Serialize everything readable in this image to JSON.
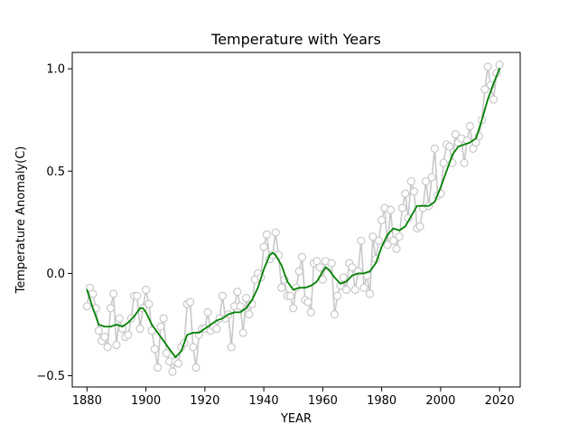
{
  "chart_data": {
    "type": "line",
    "title": "Temperature with Years",
    "xlabel": "YEAR",
    "ylabel": "Temperature Anomaly(C)",
    "xlim": [
      1875,
      2027
    ],
    "ylim": [
      -0.555,
      1.08
    ],
    "x_ticks": [
      1880,
      1900,
      1920,
      1940,
      1960,
      1980,
      2000,
      2020
    ],
    "y_ticks": [
      -0.5,
      0.0,
      0.5,
      1.0
    ],
    "y_tick_labels": [
      "−0.5",
      "0.0",
      "0.5",
      "1.0"
    ],
    "grid": false,
    "legend": "none",
    "series": [
      {
        "style": "line-with-hollow-markers",
        "color": "#c8c8c8",
        "x": [
          1880,
          1881,
          1882,
          1883,
          1884,
          1885,
          1886,
          1887,
          1888,
          1889,
          1890,
          1891,
          1892,
          1893,
          1894,
          1895,
          1896,
          1897,
          1898,
          1899,
          1900,
          1901,
          1902,
          1903,
          1904,
          1905,
          1906,
          1907,
          1908,
          1909,
          1910,
          1911,
          1912,
          1913,
          1914,
          1915,
          1916,
          1917,
          1918,
          1919,
          1920,
          1921,
          1922,
          1923,
          1924,
          1925,
          1926,
          1927,
          1928,
          1929,
          1930,
          1931,
          1932,
          1933,
          1934,
          1935,
          1936,
          1937,
          1938,
          1939,
          1940,
          1941,
          1942,
          1943,
          1944,
          1945,
          1946,
          1947,
          1948,
          1949,
          1950,
          1951,
          1952,
          1953,
          1954,
          1955,
          1956,
          1957,
          1958,
          1959,
          1960,
          1961,
          1962,
          1963,
          1964,
          1965,
          1966,
          1967,
          1968,
          1969,
          1970,
          1971,
          1972,
          1973,
          1974,
          1975,
          1976,
          1977,
          1978,
          1979,
          1980,
          1981,
          1982,
          1983,
          1984,
          1985,
          1986,
          1987,
          1988,
          1989,
          1990,
          1991,
          1992,
          1993,
          1994,
          1995,
          1996,
          1997,
          1998,
          1999,
          2000,
          2001,
          2002,
          2003,
          2004,
          2005,
          2006,
          2007,
          2008,
          2009,
          2010,
          2011,
          2012,
          2013,
          2014,
          2015,
          2016,
          2017,
          2018,
          2019,
          2020
        ],
        "values": [
          -0.16,
          -0.07,
          -0.1,
          -0.17,
          -0.28,
          -0.33,
          -0.31,
          -0.36,
          -0.17,
          -0.1,
          -0.35,
          -0.22,
          -0.27,
          -0.31,
          -0.3,
          -0.22,
          -0.11,
          -0.11,
          -0.27,
          -0.17,
          -0.08,
          -0.15,
          -0.28,
          -0.37,
          -0.46,
          -0.26,
          -0.22,
          -0.39,
          -0.43,
          -0.48,
          -0.43,
          -0.44,
          -0.36,
          -0.34,
          -0.15,
          -0.14,
          -0.36,
          -0.46,
          -0.3,
          -0.27,
          -0.27,
          -0.19,
          -0.28,
          -0.26,
          -0.27,
          -0.22,
          -0.11,
          -0.22,
          -0.2,
          -0.36,
          -0.16,
          -0.09,
          -0.16,
          -0.29,
          -0.12,
          -0.2,
          -0.15,
          -0.03,
          -0.0,
          -0.02,
          0.13,
          0.19,
          0.07,
          0.09,
          0.2,
          0.09,
          -0.07,
          -0.03,
          -0.11,
          -0.11,
          -0.17,
          -0.07,
          0.01,
          0.08,
          -0.13,
          -0.14,
          -0.19,
          0.05,
          0.06,
          0.03,
          -0.03,
          0.06,
          0.03,
          0.05,
          -0.2,
          -0.11,
          -0.06,
          -0.02,
          -0.08,
          0.05,
          0.03,
          -0.08,
          0.01,
          0.16,
          -0.07,
          -0.01,
          -0.1,
          0.18,
          0.07,
          0.16,
          0.26,
          0.32,
          0.14,
          0.31,
          0.16,
          0.12,
          0.18,
          0.32,
          0.39,
          0.27,
          0.45,
          0.4,
          0.22,
          0.23,
          0.32,
          0.45,
          0.33,
          0.47,
          0.61,
          0.38,
          0.39,
          0.54,
          0.63,
          0.62,
          0.54,
          0.68,
          0.64,
          0.66,
          0.54,
          0.65,
          0.72,
          0.61,
          0.64,
          0.67,
          0.75,
          0.9,
          1.01,
          0.92,
          0.85,
          0.98,
          1.02
        ]
      },
      {
        "style": "smoothed-line",
        "color": "#008000",
        "x": [
          1880,
          1882,
          1884,
          1886,
          1888,
          1890,
          1892,
          1894,
          1896,
          1898,
          1899,
          1900,
          1902,
          1904,
          1906,
          1908,
          1910,
          1912,
          1914,
          1916,
          1918,
          1920,
          1922,
          1924,
          1926,
          1928,
          1930,
          1932,
          1934,
          1936,
          1938,
          1940,
          1942,
          1943,
          1944,
          1946,
          1948,
          1950,
          1952,
          1954,
          1956,
          1958,
          1960,
          1961,
          1962,
          1964,
          1966,
          1968,
          1970,
          1972,
          1974,
          1976,
          1978,
          1980,
          1982,
          1984,
          1986,
          1988,
          1990,
          1992,
          1994,
          1996,
          1998,
          2000,
          2002,
          2004,
          2006,
          2008,
          2010,
          2012,
          2014,
          2016,
          2018,
          2020
        ],
        "values": [
          -0.08,
          -0.17,
          -0.25,
          -0.26,
          -0.26,
          -0.25,
          -0.26,
          -0.24,
          -0.21,
          -0.17,
          -0.17,
          -0.19,
          -0.25,
          -0.29,
          -0.33,
          -0.37,
          -0.41,
          -0.38,
          -0.3,
          -0.29,
          -0.29,
          -0.27,
          -0.25,
          -0.23,
          -0.22,
          -0.2,
          -0.19,
          -0.19,
          -0.17,
          -0.13,
          -0.07,
          0.02,
          0.09,
          0.1,
          0.09,
          0.04,
          -0.04,
          -0.08,
          -0.07,
          -0.07,
          -0.06,
          -0.04,
          0.01,
          0.03,
          0.02,
          -0.02,
          -0.05,
          -0.04,
          -0.01,
          0.0,
          0.0,
          0.01,
          0.05,
          0.13,
          0.19,
          0.22,
          0.21,
          0.23,
          0.28,
          0.33,
          0.33,
          0.33,
          0.35,
          0.42,
          0.5,
          0.58,
          0.62,
          0.63,
          0.64,
          0.66,
          0.75,
          0.85,
          0.93,
          1.0
        ]
      }
    ]
  }
}
